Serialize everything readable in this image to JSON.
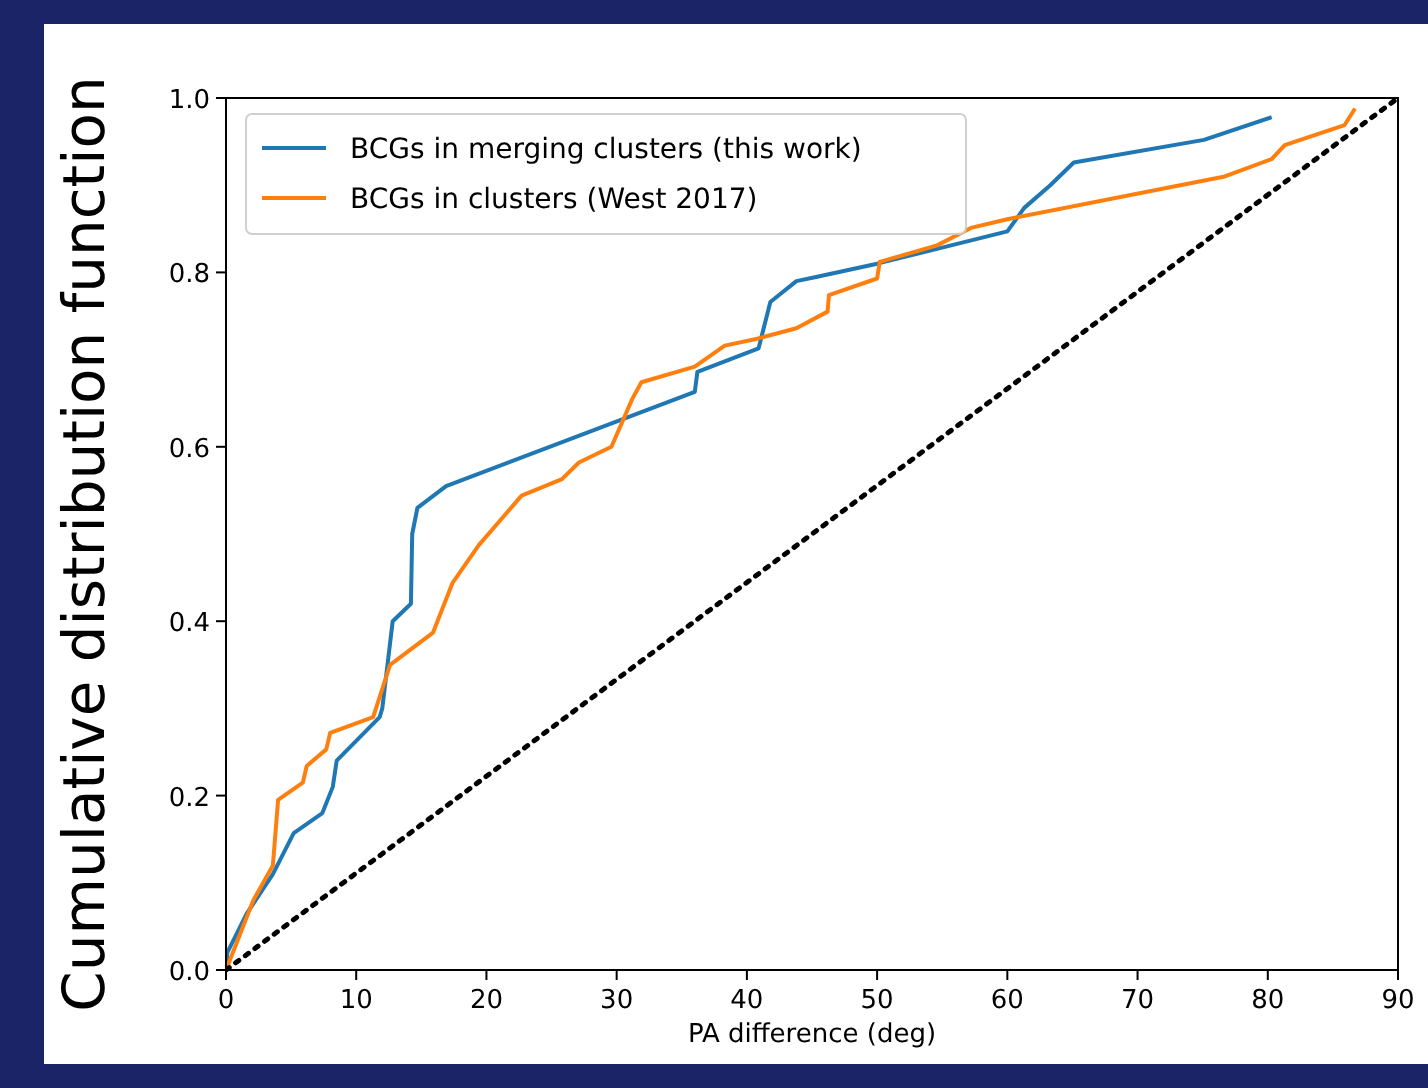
{
  "chart_data": {
    "type": "line",
    "xlabel": "PA difference (deg)",
    "ylabel": "Cumulative distribution function",
    "xlim": [
      0,
      90
    ],
    "ylim": [
      0,
      1
    ],
    "xticks": [
      0,
      10,
      20,
      30,
      40,
      50,
      60,
      70,
      80,
      90
    ],
    "yticks": [
      {
        "value": 0,
        "label": "0.0"
      },
      {
        "value": 0.2,
        "label": "0.2"
      },
      {
        "value": 0.4,
        "label": "0.4"
      },
      {
        "value": 0.6,
        "label": "0.6"
      },
      {
        "value": 0.8,
        "label": "0.8"
      },
      {
        "value": 1,
        "label": "1.0"
      }
    ],
    "grid": false,
    "legend": "top left",
    "line_style": "solid",
    "series": [
      {
        "name": "BCGs in merging clusters (this work)",
        "color": "#1f77b4",
        "x": [
          0,
          0.1,
          1.6,
          3.6,
          5.2,
          7.4,
          8.2,
          8.5,
          11.8,
          12,
          12.8,
          14.2,
          14.3,
          14.7,
          16.9,
          36,
          36.2,
          40.9,
          41.8,
          43.8,
          45.4,
          50,
          54.6,
          60,
          61.3,
          63.3,
          65.1,
          75.1,
          80.3
        ],
        "values": [
          0,
          0.02,
          0.065,
          0.11,
          0.157,
          0.18,
          0.21,
          0.24,
          0.29,
          0.3,
          0.4,
          0.42,
          0.5,
          0.53,
          0.555,
          0.663,
          0.686,
          0.713,
          0.766,
          0.79,
          0.795,
          0.81,
          0.827,
          0.847,
          0.874,
          0.9,
          0.926,
          0.952,
          0.978
        ]
      },
      {
        "name": "BCGs in clusters (West 2017)",
        "color": "#ff7f0e",
        "x": [
          0,
          2.1,
          3.6,
          4,
          5.9,
          6.2,
          7.7,
          8,
          11.3,
          12.6,
          15.9,
          17.4,
          19.4,
          22.7,
          25.8,
          27.1,
          29.6,
          31.2,
          31.9,
          36,
          38.3,
          40.8,
          43.8,
          46.2,
          46.3,
          50,
          50.2,
          54.6,
          57.2,
          60,
          76.7,
          80.3,
          81.3,
          85.9,
          86.7
        ],
        "values": [
          0,
          0.08,
          0.12,
          0.195,
          0.215,
          0.234,
          0.253,
          0.272,
          0.29,
          0.35,
          0.387,
          0.444,
          0.487,
          0.544,
          0.563,
          0.582,
          0.6,
          0.655,
          0.674,
          0.692,
          0.716,
          0.724,
          0.736,
          0.755,
          0.774,
          0.793,
          0.812,
          0.831,
          0.851,
          0.861,
          0.91,
          0.93,
          0.946,
          0.969,
          0.988
        ]
      },
      {
        "color": "#000000",
        "line_style": "dotted",
        "x": [
          0,
          90
        ],
        "values": [
          0,
          1
        ]
      }
    ]
  }
}
